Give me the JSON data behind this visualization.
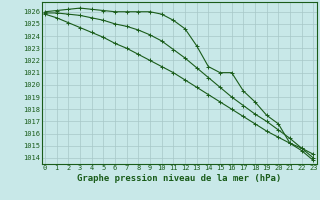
{
  "title": "Graphe pression niveau de la mer (hPa)",
  "bg_color": "#c8e8e8",
  "grid_color": "#a8c8c8",
  "line_color": "#1a5c1a",
  "x_ticks": [
    0,
    1,
    2,
    3,
    4,
    5,
    6,
    7,
    8,
    9,
    10,
    11,
    12,
    13,
    14,
    15,
    16,
    17,
    18,
    19,
    20,
    21,
    22,
    23
  ],
  "y_ticks": [
    1014,
    1015,
    1016,
    1017,
    1018,
    1019,
    1020,
    1021,
    1022,
    1023,
    1024,
    1025,
    1026
  ],
  "ylim": [
    1013.5,
    1026.8
  ],
  "xlim": [
    -0.3,
    23.3
  ],
  "series": [
    [
      1026.0,
      1026.1,
      1026.2,
      1026.3,
      1026.2,
      1026.1,
      1026.0,
      1026.0,
      1026.0,
      1026.0,
      1025.8,
      1025.3,
      1024.6,
      1023.2,
      1021.5,
      1021.0,
      1021.0,
      1019.5,
      1018.6,
      1017.5,
      1016.8,
      1015.2,
      1014.6,
      1013.8
    ],
    [
      1025.9,
      1025.9,
      1025.8,
      1025.7,
      1025.5,
      1025.3,
      1025.0,
      1024.8,
      1024.5,
      1024.1,
      1023.6,
      1022.9,
      1022.2,
      1021.4,
      1020.6,
      1019.8,
      1019.0,
      1018.3,
      1017.6,
      1017.0,
      1016.3,
      1015.6,
      1014.8,
      1014.0
    ],
    [
      1025.8,
      1025.5,
      1025.1,
      1024.7,
      1024.3,
      1023.9,
      1023.4,
      1023.0,
      1022.5,
      1022.0,
      1021.5,
      1021.0,
      1020.4,
      1019.8,
      1019.2,
      1018.6,
      1018.0,
      1017.4,
      1016.8,
      1016.2,
      1015.7,
      1015.2,
      1014.8,
      1014.3
    ]
  ],
  "marker": "+",
  "markersize": 3,
  "linewidth": 0.8,
  "title_fontsize": 6.5,
  "tick_fontsize": 5.0,
  "ylabel_pad": 2,
  "xlabel_pad": 2
}
